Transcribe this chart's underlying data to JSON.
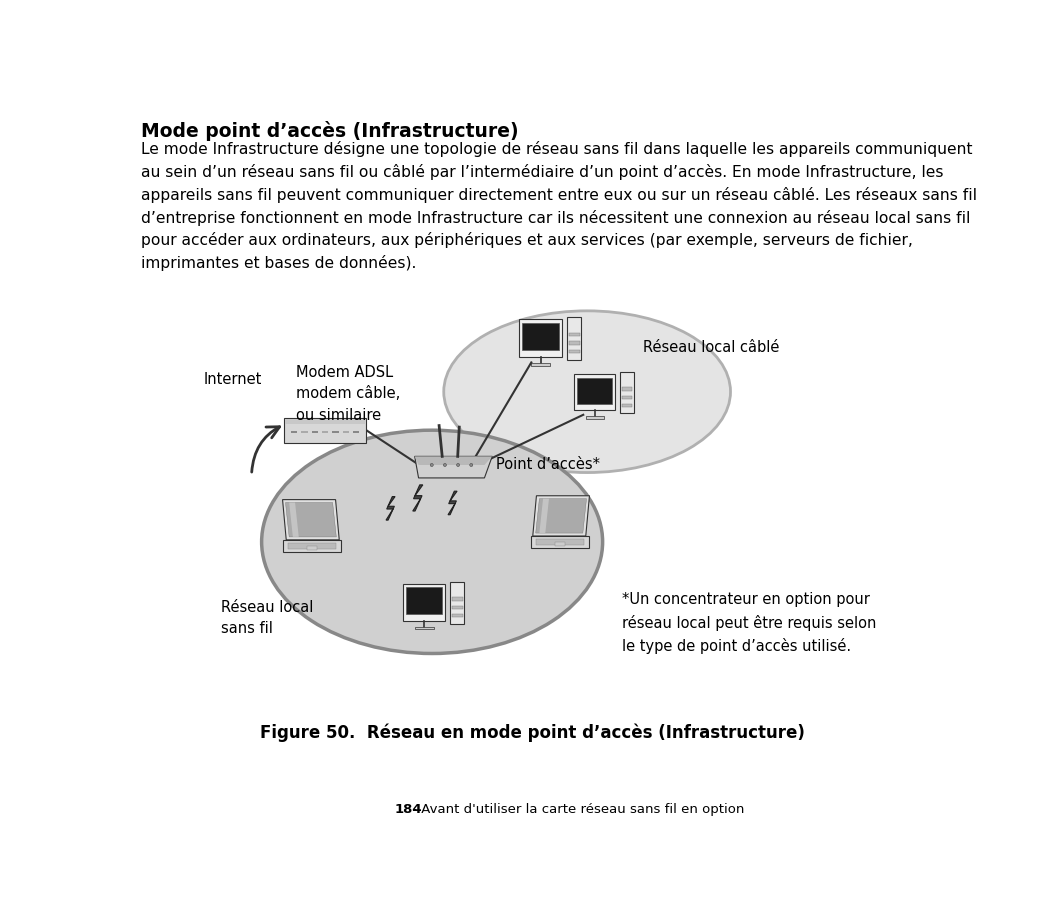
{
  "title": "Mode point d’accès (Infrastructure)",
  "body_text": "Le mode Infrastructure désigne une topologie de réseau sans fil dans laquelle les appareils communiquent\nau sein d’un réseau sans fil ou câblé par l’intermédiaire d’un point d’accès. En mode Infrastructure, les\nappareils sans fil peuvent communiquer directement entre eux ou sur un réseau câblé. Les réseaux sans fil\nd’entreprise fonctionnent en mode Infrastructure car ils nécessitent une connexion au réseau local sans fil\npour accéder aux ordinateurs, aux périphériques et aux services (par exemple, serveurs de fichier,\nimprimantes et bases de données).",
  "label_internet": "Internet",
  "label_modem": "Modem ADSL\nmodem câble,\nou similaire",
  "label_access_point": "Point d’accès*",
  "label_wired": "Réseau local câblé",
  "label_wireless": "Réseau local\nsans fil",
  "label_footnote": "*Un concentrateur en option pour\nréseau local peut être requis selon\nle type de point d’accès utilisé.",
  "label_figure": "Figure 50.  Réseau en mode point d’accès (Infrastructure)",
  "bg_color": "#ffffff",
  "text_color": "#000000",
  "footer_bold": "184",
  "footer_normal": " - Avant d'utiliser la carte réseau sans fil en option"
}
